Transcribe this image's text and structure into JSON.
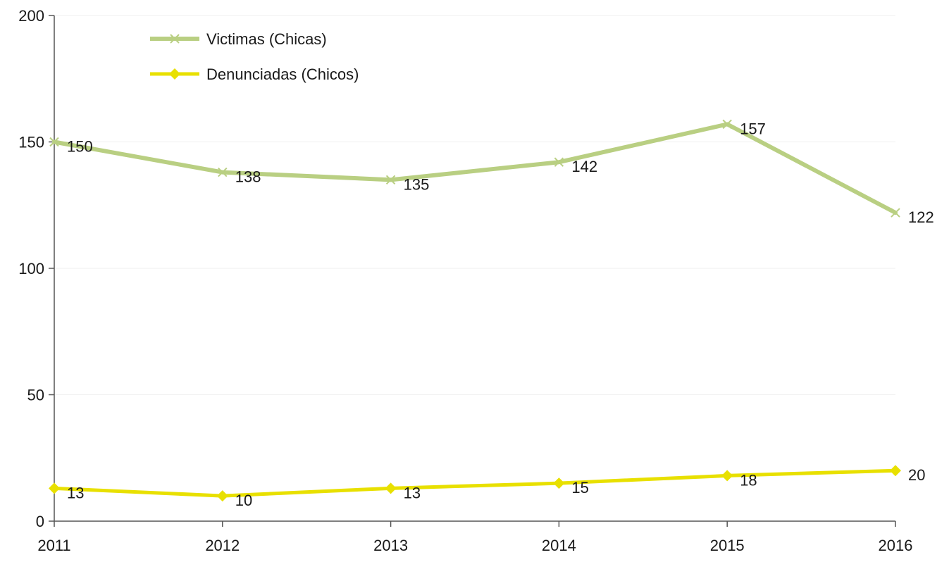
{
  "chart_data": {
    "type": "line",
    "title": "",
    "xlabel": "",
    "ylabel": "",
    "x": [
      "2011",
      "2012",
      "2013",
      "2014",
      "2015",
      "2016"
    ],
    "ylim": [
      0,
      200
    ],
    "yticks": [
      "0",
      "50",
      "100",
      "150",
      "200"
    ],
    "grid": true,
    "legend_position": "top-left",
    "series": [
      {
        "name": "Victimas (Chicas)",
        "values": [
          150,
          138,
          135,
          142,
          157,
          122
        ],
        "color": "#b9cf82",
        "marker": "x"
      },
      {
        "name": "Denunciadas (Chicos)",
        "values": [
          13,
          10,
          13,
          15,
          18,
          20
        ],
        "color": "#e8e000",
        "marker": "diamond"
      }
    ]
  }
}
